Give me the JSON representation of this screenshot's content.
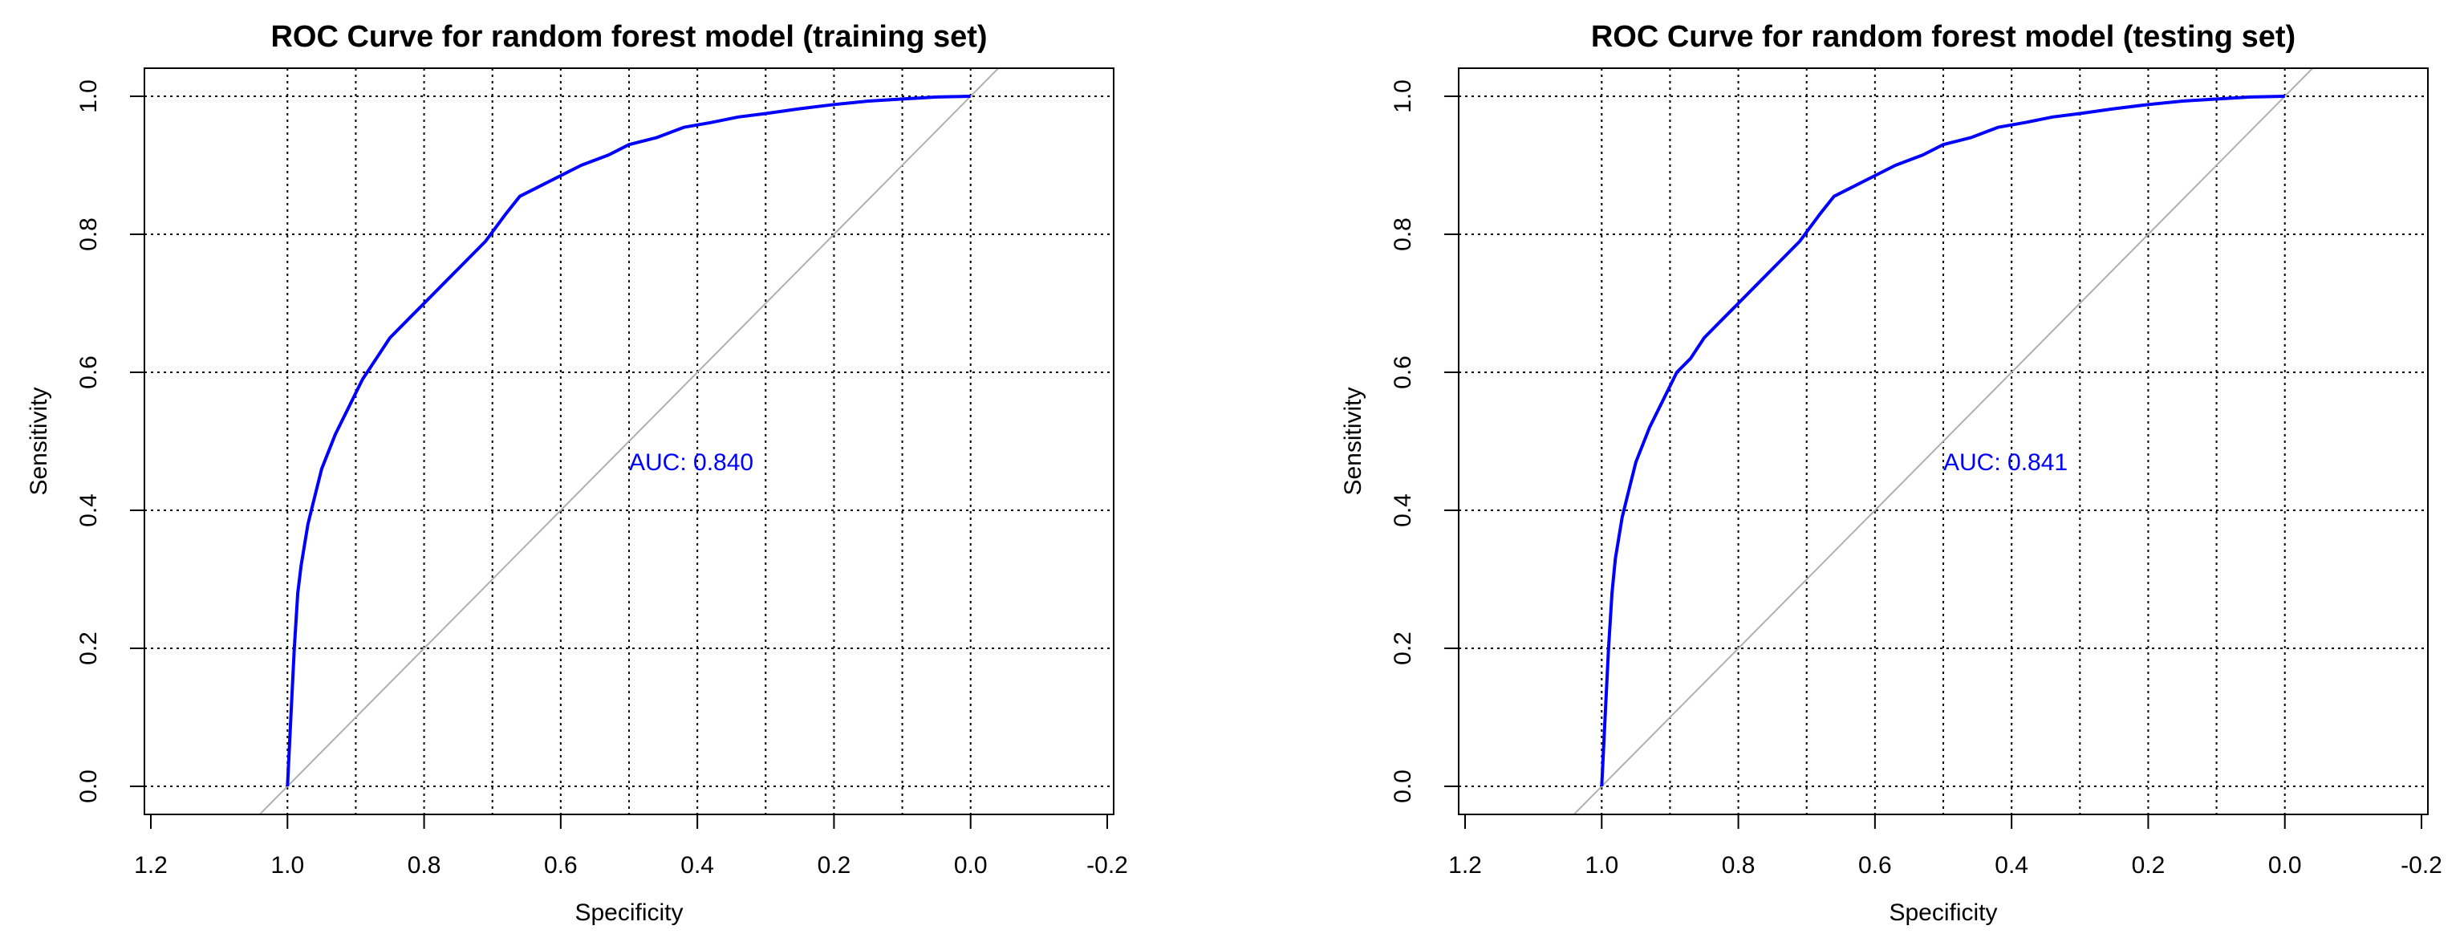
{
  "colors": {
    "curve": "#0000ff",
    "diagonal": "#b0b0b0",
    "grid": "#000000",
    "auc_text": "#0000ff"
  },
  "chart_data": [
    {
      "type": "line",
      "title": "ROC Curve for random forest model (training set)",
      "xlabel": "Specificity",
      "ylabel": "Sensitivity",
      "xlim": [
        1.2,
        -0.2
      ],
      "ylim": [
        0.0,
        1.0
      ],
      "x_reversed": true,
      "xticks": [
        "1.2",
        "1.0",
        "0.8",
        "0.6",
        "0.4",
        "0.2",
        "0.0",
        "-0.2"
      ],
      "yticks": [
        "0.0",
        "0.2",
        "0.4",
        "0.6",
        "0.8",
        "1.0"
      ],
      "grid": true,
      "auc_label": "AUC: 0.840",
      "diagonal": true,
      "series": [
        {
          "x": [
            1.0,
            0.995,
            0.99,
            0.985,
            0.98,
            0.97,
            0.96,
            0.95,
            0.93,
            0.91,
            0.89,
            0.87,
            0.85,
            0.82,
            0.8,
            0.77,
            0.74,
            0.71,
            0.68,
            0.66,
            0.63,
            0.6,
            0.57,
            0.53,
            0.5,
            0.46,
            0.42,
            0.38,
            0.34,
            0.3,
            0.25,
            0.2,
            0.15,
            0.1,
            0.05,
            0.0
          ],
          "y": [
            0.0,
            0.1,
            0.2,
            0.28,
            0.32,
            0.38,
            0.42,
            0.46,
            0.51,
            0.55,
            0.59,
            0.62,
            0.65,
            0.68,
            0.7,
            0.73,
            0.76,
            0.79,
            0.83,
            0.855,
            0.87,
            0.885,
            0.9,
            0.915,
            0.93,
            0.94,
            0.955,
            0.962,
            0.97,
            0.975,
            0.982,
            0.988,
            0.993,
            0.996,
            0.999,
            1.0
          ]
        }
      ]
    },
    {
      "type": "line",
      "title": "ROC Curve for random forest model (testing set)",
      "xlabel": "Specificity",
      "ylabel": "Sensitivity",
      "xlim": [
        1.2,
        -0.2
      ],
      "ylim": [
        0.0,
        1.0
      ],
      "x_reversed": true,
      "xticks": [
        "1.2",
        "1.0",
        "0.8",
        "0.6",
        "0.4",
        "0.2",
        "0.0",
        "-0.2"
      ],
      "yticks": [
        "0.0",
        "0.2",
        "0.4",
        "0.6",
        "0.8",
        "1.0"
      ],
      "grid": true,
      "auc_label": "AUC: 0.841",
      "diagonal": true,
      "series": [
        {
          "x": [
            1.0,
            0.995,
            0.99,
            0.985,
            0.98,
            0.97,
            0.96,
            0.95,
            0.93,
            0.91,
            0.89,
            0.87,
            0.85,
            0.82,
            0.8,
            0.77,
            0.74,
            0.71,
            0.68,
            0.66,
            0.63,
            0.6,
            0.57,
            0.53,
            0.5,
            0.46,
            0.42,
            0.38,
            0.34,
            0.3,
            0.25,
            0.2,
            0.15,
            0.1,
            0.05,
            0.0
          ],
          "y": [
            0.0,
            0.1,
            0.2,
            0.28,
            0.33,
            0.39,
            0.43,
            0.47,
            0.52,
            0.56,
            0.6,
            0.62,
            0.65,
            0.68,
            0.7,
            0.73,
            0.76,
            0.79,
            0.83,
            0.855,
            0.87,
            0.885,
            0.9,
            0.915,
            0.93,
            0.94,
            0.955,
            0.962,
            0.97,
            0.975,
            0.982,
            0.988,
            0.993,
            0.996,
            0.999,
            1.0
          ]
        }
      ]
    }
  ]
}
